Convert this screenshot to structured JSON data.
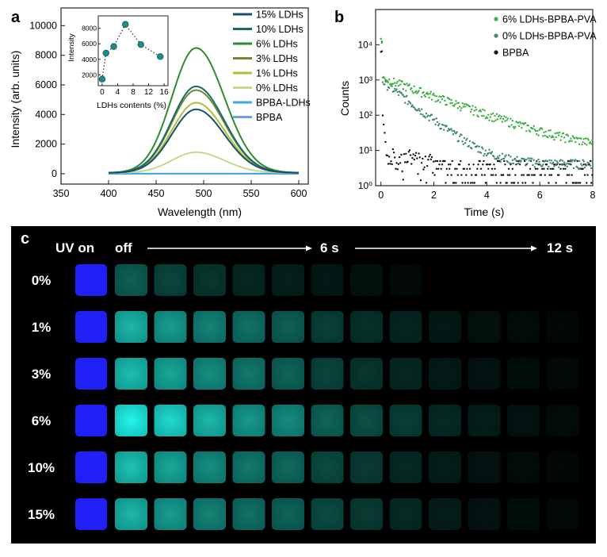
{
  "panels": {
    "a": {
      "label": "a"
    },
    "b": {
      "label": "b"
    },
    "c": {
      "label": "c"
    }
  },
  "chart_data": [
    {
      "panel": "a",
      "type": "line",
      "xlabel": "Wavelength (nm)",
      "ylabel": "Intensity (arb. units)",
      "xlim": [
        350,
        610
      ],
      "ylim": [
        -700,
        11200
      ],
      "xticks": [
        350,
        400,
        450,
        500,
        550,
        600
      ],
      "yticks": [
        0,
        2000,
        4000,
        6000,
        8000,
        10000
      ],
      "legend_position": "top-right",
      "x": [
        400,
        410,
        420,
        430,
        440,
        450,
        460,
        470,
        480,
        490,
        500,
        510,
        520,
        530,
        540,
        550,
        560,
        570,
        580,
        590,
        600
      ],
      "series": [
        {
          "name": "15% LDHs",
          "color": "#1d4e6b",
          "peak": 4350
        },
        {
          "name": "10% LDHs",
          "color": "#1a6b66",
          "peak": 5900
        },
        {
          "name": "6% LDHs",
          "color": "#2e8b2e",
          "peak": 8500
        },
        {
          "name": "3% LDHs",
          "color": "#6f8a2f",
          "peak": 5650
        },
        {
          "name": "1% LDHs",
          "color": "#a8c23a",
          "peak": 4800
        },
        {
          "name": "0% LDHs",
          "color": "#c7d98f",
          "peak": 1450
        },
        {
          "name": "BPBA-LDHs",
          "color": "#3fa8e0",
          "peak": 0
        },
        {
          "name": "BPBA",
          "color": "#6aa0e8",
          "peak": 0
        }
      ],
      "inset": {
        "type": "line",
        "xlabel": "LDHs contents (%)",
        "ylabel": "Intensity",
        "xticks": [
          0,
          4,
          8,
          12,
          16
        ],
        "yticks": [
          2000,
          4000,
          6000,
          8000
        ],
        "ylim": [
          600,
          9600
        ],
        "xlim": [
          -1,
          17
        ],
        "x": [
          0,
          1,
          3,
          6,
          10,
          15
        ],
        "y": [
          1450,
          4800,
          5650,
          8500,
          5900,
          4350
        ],
        "color": "#1f8a8a"
      }
    },
    {
      "panel": "b",
      "type": "scatter",
      "xlabel": "Time (s)",
      "ylabel": "Counts",
      "xlim": [
        -0.2,
        8
      ],
      "ylog": true,
      "ylim": [
        1,
        100000
      ],
      "xticks": [
        0,
        2,
        4,
        6,
        8
      ],
      "ytick_labels": [
        "10⁰",
        "10¹",
        "10²",
        "10³",
        "10⁴"
      ],
      "legend_position": "top-right",
      "series": [
        {
          "name": "6% LDHs-BPBA-PVA",
          "color": "#3cb043",
          "initial": 14000,
          "tau": 1.6,
          "floor": 8
        },
        {
          "name": "0% LDHs-BPBA-PVA",
          "color": "#3f8a6a",
          "initial": 12000,
          "tau": 0.75,
          "floor": 4
        },
        {
          "name": "BPBA",
          "color": "#111111",
          "initial": 6000,
          "tau": 0.05,
          "floor": 2
        }
      ]
    }
  ],
  "photo_grid": {
    "header_uv": "UV on",
    "header_off": "off",
    "mark_6s": "6 s",
    "mark_12s": "12 s",
    "rows": [
      {
        "label": "0%",
        "levels": [
          0.38,
          0.28,
          0.22,
          0.16,
          0.13,
          0.1,
          0.07,
          0.04,
          0,
          0,
          0,
          0
        ]
      },
      {
        "label": "1%",
        "levels": [
          0.72,
          0.62,
          0.52,
          0.45,
          0.38,
          0.26,
          0.2,
          0.15,
          0.1,
          0.07,
          0.05,
          0.03
        ]
      },
      {
        "label": "3%",
        "levels": [
          0.75,
          0.66,
          0.56,
          0.48,
          0.4,
          0.28,
          0.22,
          0.16,
          0.11,
          0.08,
          0.06,
          0.04
        ]
      },
      {
        "label": "6%",
        "levels": [
          0.95,
          0.85,
          0.72,
          0.6,
          0.55,
          0.4,
          0.32,
          0.25,
          0.17,
          0.12,
          0.08,
          0.05
        ]
      },
      {
        "label": "10%",
        "levels": [
          0.76,
          0.66,
          0.56,
          0.48,
          0.42,
          0.3,
          0.24,
          0.17,
          0.12,
          0.08,
          0.05,
          0.03
        ]
      },
      {
        "label": "15%",
        "levels": [
          0.72,
          0.62,
          0.52,
          0.45,
          0.4,
          0.3,
          0.24,
          0.17,
          0.12,
          0.08,
          0.06,
          0.04
        ]
      }
    ]
  }
}
